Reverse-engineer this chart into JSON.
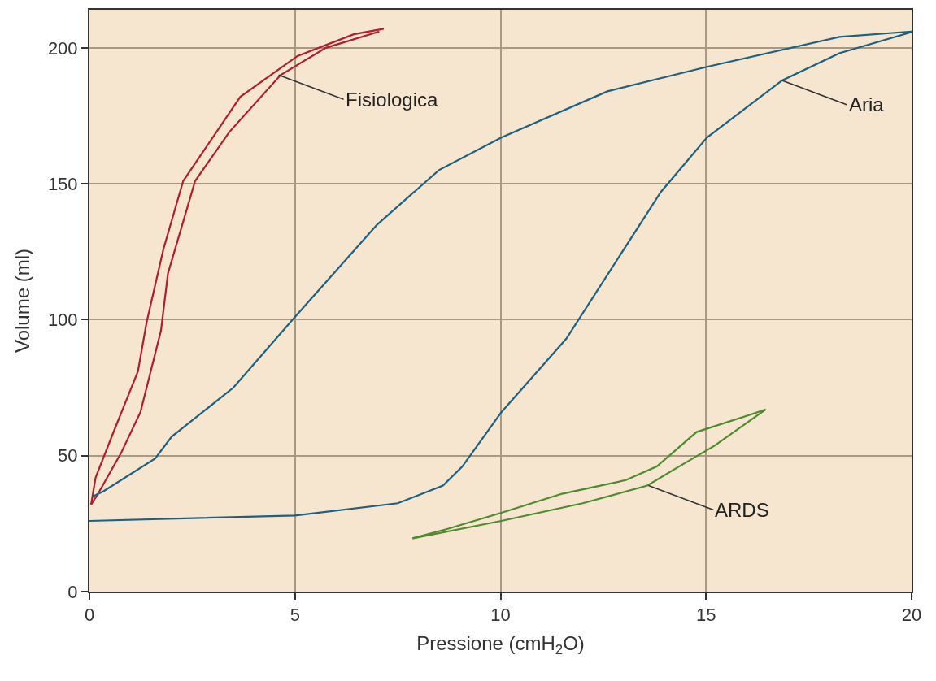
{
  "chart_data": {
    "type": "line",
    "xlabel": "Pressione (cmH$_{2}$O)",
    "ylabel": "Volume (ml)",
    "xlim": [
      0,
      20
    ],
    "ylim": [
      0,
      214
    ],
    "xticks": [
      0,
      5,
      10,
      15,
      20
    ],
    "yticks": [
      0,
      50,
      100,
      150,
      200
    ],
    "grid": true,
    "series": [
      {
        "color": "#b01e2e",
        "x": [
          0.04,
          0.21,
          0.77,
          1.24,
          1.74,
          1.91,
          2.57,
          3.4,
          4.65,
          5.75,
          7.05
        ],
        "values": [
          32,
          36,
          51,
          66,
          96,
          117,
          151,
          169,
          190,
          200,
          206
        ]
      },
      {
        "color": "#b01e2e",
        "x": [
          0.04,
          0.15,
          0.62,
          1.18,
          1.39,
          1.8,
          2.28,
          3.67,
          5.06,
          6.43,
          7.16
        ],
        "values": [
          32,
          42,
          60,
          81,
          99,
          126,
          151,
          182,
          197,
          205,
          207
        ]
      },
      {
        "color": "#1f5f80",
        "x": [
          0,
          5,
          7.5,
          8.6,
          9.07,
          10.02,
          11.6,
          13.9,
          15.02,
          16.85,
          18.24,
          19.96,
          20
        ],
        "values": [
          26,
          28,
          32.5,
          39,
          46,
          66,
          93,
          147,
          167,
          188,
          198,
          205.6,
          206
        ]
      },
      {
        "color": "#1f5f80",
        "x": [
          0.08,
          0.35,
          1.6,
          2,
          3.5,
          5,
          7,
          8.5,
          10.02,
          12.6,
          15.02,
          18.24,
          20
        ],
        "values": [
          35,
          37,
          49,
          57,
          75,
          101,
          135,
          155,
          167,
          184,
          193,
          204,
          206
        ]
      },
      {
        "color": "#4e8a2f",
        "x": [
          7.86,
          10.02,
          12.0,
          13.57,
          14.34,
          15.2,
          16.45
        ],
        "values": [
          19.6,
          26,
          32.5,
          39,
          46,
          53.6,
          67
        ]
      },
      {
        "color": "#4e8a2f",
        "x": [
          7.86,
          8.7,
          10.02,
          11.5,
          13.05,
          13.8,
          14.77,
          16.06,
          16.45
        ],
        "values": [
          19.6,
          23,
          29,
          36,
          41,
          46,
          58.7,
          65,
          67
        ]
      }
    ],
    "annotations": [
      {
        "text": "Fisiologica",
        "x": 4.6,
        "y": 190
      },
      {
        "text": "Aria",
        "x": 16.85,
        "y": 188
      },
      {
        "text": "ARDS",
        "x": 13.6,
        "y": 39
      }
    ]
  }
}
